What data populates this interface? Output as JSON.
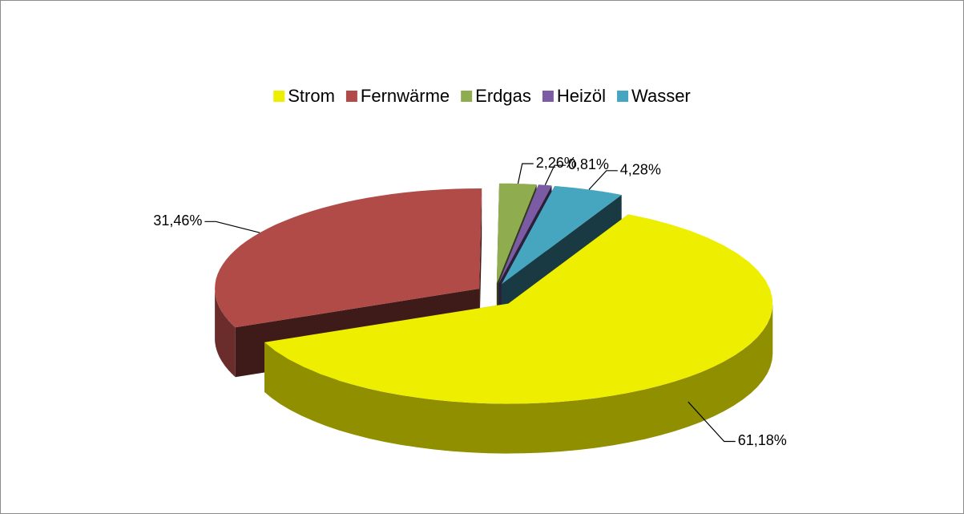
{
  "chart_data": {
    "type": "pie3d",
    "categories": [
      "Strom",
      "Fernwärme",
      "Erdgas",
      "Heizöl",
      "Wasser"
    ],
    "values": [
      61.18,
      31.46,
      2.26,
      0.81,
      4.28
    ],
    "value_labels": [
      "61,18%",
      "31,46%",
      "2,26%",
      "0,81%",
      "4,28%"
    ],
    "colors": [
      "#eeee00",
      "#b14b47",
      "#8fac4f",
      "#7b5ba3",
      "#46a6c0"
    ],
    "legend": "top"
  }
}
